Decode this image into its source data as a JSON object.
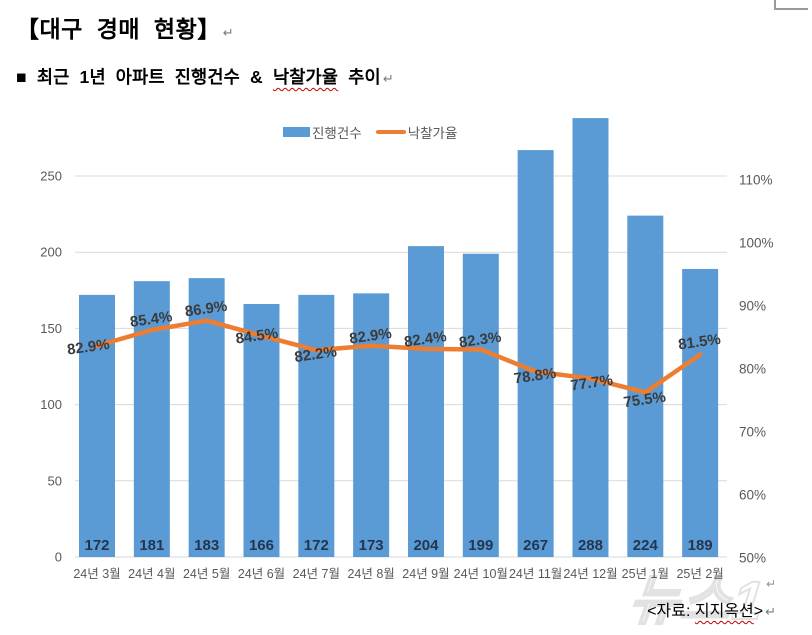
{
  "page": {
    "title": "【대구 경매 현황】",
    "return_mark": "↵",
    "subtitle": {
      "bullet": "■ ",
      "prefix": "최근 1년 아파트 진행건수 & ",
      "underlined": "낙찰가율",
      "suffix": " 추이"
    },
    "source": {
      "prefix": "<자료: ",
      "underlined": "지지옥션",
      "suffix": ">"
    },
    "watermark": "뉴스1"
  },
  "legend": [
    {
      "label": "진행건수",
      "type": "bar",
      "color": "#5B9BD5"
    },
    {
      "label": "낙찰가율",
      "type": "line",
      "color": "#ED7D31"
    }
  ],
  "colors": {
    "bar": "#5B9BD5",
    "line": "#ED7D31",
    "grid": "#D9D9D9",
    "axis_text": "#595959",
    "bar_label": "#24354F",
    "pct_label": "#3B3B3B"
  },
  "chart_data": {
    "type": "bar",
    "subtype": "combo-bar-line-dual-axis",
    "title": "최근 1년 아파트 진행건수 & 낙찰가율 추이",
    "categories": [
      "24년 3월",
      "24년 4월",
      "24년 5월",
      "24년 6월",
      "24년 7월",
      "24년 8월",
      "24년 9월",
      "24년 10월",
      "24년 11월",
      "24년 12월",
      "25년 1월",
      "25년 2월"
    ],
    "series": [
      {
        "name": "진행건수",
        "type": "bar",
        "axis": "left",
        "values": [
          172,
          181,
          183,
          166,
          172,
          173,
          204,
          199,
          267,
          288,
          224,
          189
        ]
      },
      {
        "name": "낙찰가율",
        "type": "line",
        "axis": "right",
        "unit": "%",
        "values": [
          82.9,
          85.4,
          86.9,
          84.5,
          82.2,
          82.9,
          82.4,
          82.3,
          78.8,
          77.7,
          75.5,
          81.5
        ]
      }
    ],
    "left_axis": {
      "ticks": [
        0,
        50,
        100,
        150,
        200,
        250
      ],
      "min": 0,
      "max": 300
    },
    "right_axis": {
      "ticks": [
        "50%",
        "60%",
        "70%",
        "80%",
        "90%",
        "100%",
        "110%"
      ],
      "min": 50,
      "max": 110
    },
    "grid": true,
    "legend_position": "top"
  }
}
